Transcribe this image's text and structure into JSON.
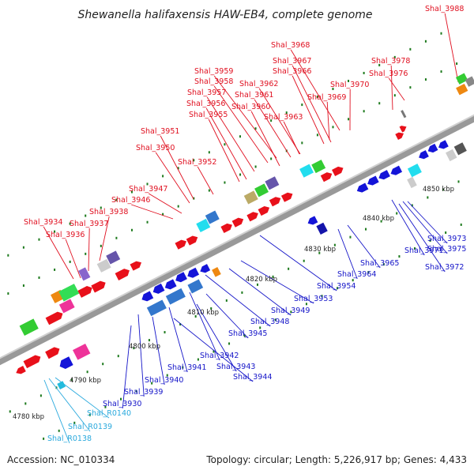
{
  "title": "Shewanella halifaxensis HAW-EB4, complete genome",
  "accession": "Accession: NC_010334",
  "topology": "Topology: circular; Length: 5,226,917 bp; Genes: 4,433",
  "scale_labels": [
    "4780 kbp",
    "4790 kbp",
    "4800 kbp",
    "4810 kbp",
    "4820 kbp",
    "4830 kbp",
    "4840 kbp",
    "4850 kbp"
  ],
  "colors": {
    "forward_gene": "#e8101a",
    "reverse_gene": "#1414d8",
    "rna_gene": "#22bbdd",
    "backbone": "#999999",
    "tick": "#1d7a1d"
  },
  "top_labels": [
    "Shal_3988",
    "Shal_3968",
    "Shal_3967",
    "Shal_3978",
    "Shal_3966",
    "Shal_3976",
    "Shal_3959",
    "Shal_3958",
    "Shal_3962",
    "Shal_3970",
    "Shal_3957",
    "Shal_3961",
    "Shal_3969",
    "Shal_3956",
    "Shal_3960",
    "Shal_3955",
    "Shal_3963",
    "Shal_3951",
    "Shal_3950",
    "Shal_3952",
    "Shal_3947",
    "Shal_3946",
    "Shal_3938",
    "Shal_3934",
    "Shal_3937",
    "Shal_3936"
  ],
  "bottom_labels": [
    "Shal_3973",
    "Shal_3975",
    "Shal_3971",
    "Shal_3972",
    "Shal_3965",
    "Shal_3964",
    "Shal_3954",
    "Shal_3953",
    "Shal_3949",
    "Shal_3948",
    "Shal_3945",
    "Shal_3942",
    "Shal_3943",
    "Shal_3941",
    "Shal_3944",
    "Shal_3940",
    "Shal_3939",
    "Shal_3930"
  ],
  "rna_labels": [
    "Shal_R0140",
    "Shal_R0139",
    "Shal_R0138"
  ]
}
